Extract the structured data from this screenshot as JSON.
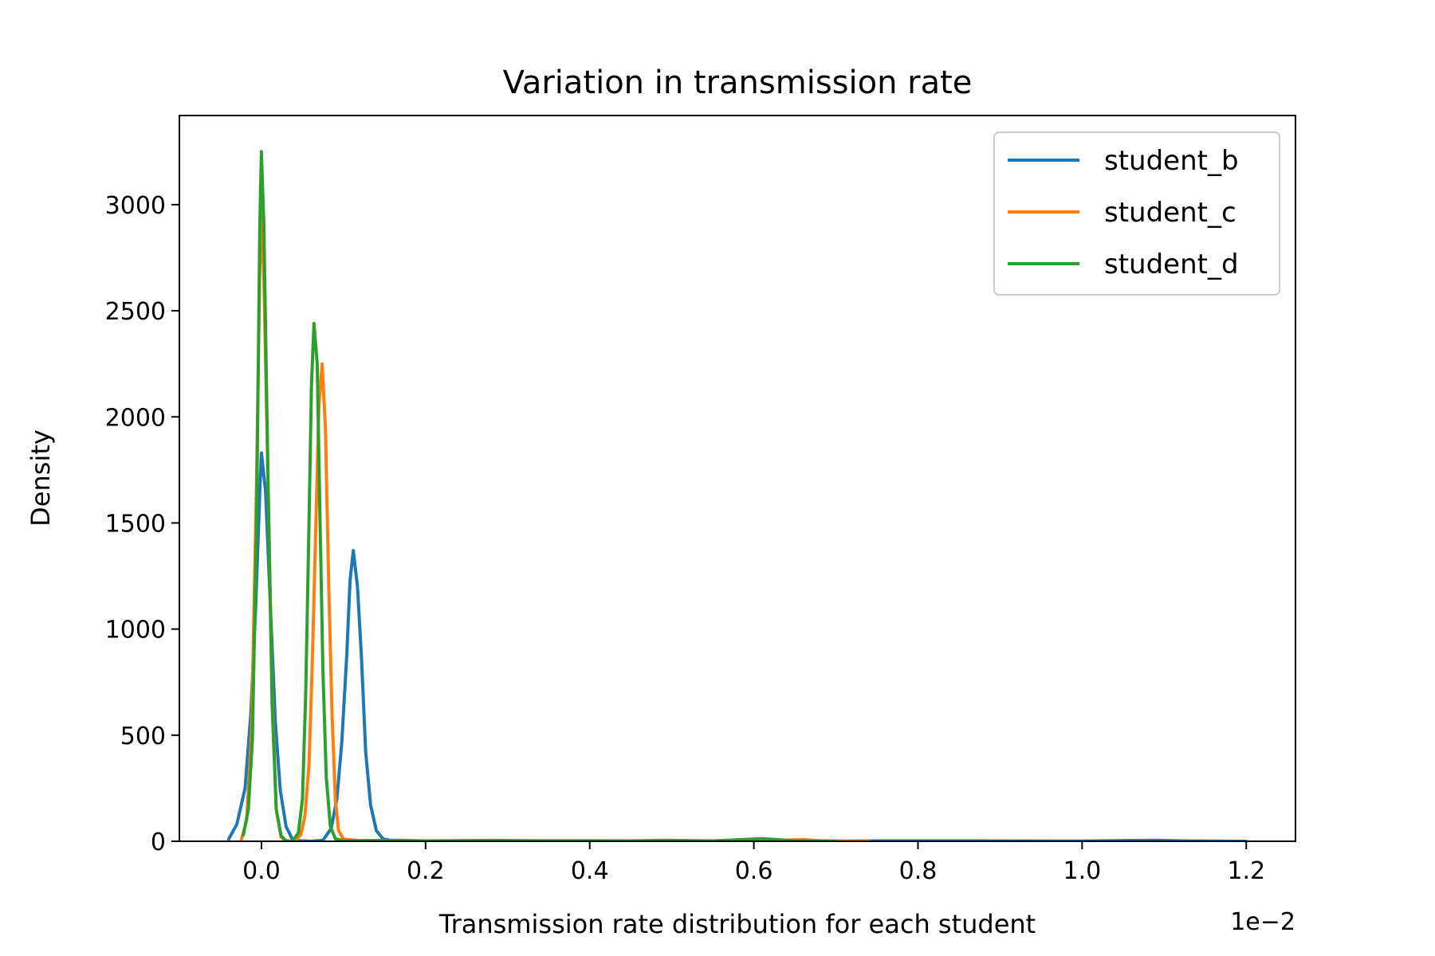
{
  "chart_data": {
    "type": "line",
    "title": "Variation in transmission rate",
    "xlabel": "Transmission rate distribution for each student",
    "ylabel": "Density",
    "x_offset_text": "1e−2",
    "x_scale": 0.01,
    "xlim": [
      -0.1,
      1.26
    ],
    "ylim": [
      0,
      3420
    ],
    "xticks": [
      0.0,
      0.2,
      0.4,
      0.6,
      0.8,
      1.0,
      1.2
    ],
    "xtick_labels": [
      "0.0",
      "0.2",
      "0.4",
      "0.6",
      "0.8",
      "1.0",
      "1.2"
    ],
    "yticks": [
      0,
      500,
      1000,
      1500,
      2000,
      2500,
      3000
    ],
    "ytick_labels": [
      "0",
      "500",
      "1000",
      "1500",
      "2000",
      "2500",
      "3000"
    ],
    "grid": false,
    "legend_position": "top-right",
    "series": [
      {
        "name": "student_b",
        "color": "#1f77b4",
        "points": [
          [
            -0.04,
            10
          ],
          [
            -0.03,
            80
          ],
          [
            -0.02,
            250
          ],
          [
            -0.013,
            600
          ],
          [
            -0.007,
            1100
          ],
          [
            -0.002,
            1650
          ],
          [
            0.0,
            1830
          ],
          [
            0.005,
            1650
          ],
          [
            0.011,
            1100
          ],
          [
            0.017,
            560
          ],
          [
            0.023,
            240
          ],
          [
            0.03,
            70
          ],
          [
            0.037,
            15
          ],
          [
            0.045,
            3
          ],
          [
            0.06,
            0
          ],
          [
            0.075,
            5
          ],
          [
            0.085,
            60
          ],
          [
            0.092,
            200
          ],
          [
            0.098,
            470
          ],
          [
            0.104,
            880
          ],
          [
            0.108,
            1230
          ],
          [
            0.112,
            1370
          ],
          [
            0.117,
            1200
          ],
          [
            0.122,
            860
          ],
          [
            0.127,
            420
          ],
          [
            0.133,
            170
          ],
          [
            0.14,
            50
          ],
          [
            0.148,
            12
          ],
          [
            0.16,
            2
          ],
          [
            0.3,
            0
          ],
          [
            0.6,
            2
          ],
          [
            0.87,
            2
          ],
          [
            1.0,
            1
          ],
          [
            1.09,
            5
          ],
          [
            1.12,
            2
          ],
          [
            1.2,
            0
          ]
        ]
      },
      {
        "name": "student_c",
        "color": "#ff7f0e",
        "points": [
          [
            -0.025,
            0
          ],
          [
            -0.018,
            100
          ],
          [
            -0.012,
            520
          ],
          [
            -0.006,
            1700
          ],
          [
            -0.002,
            2700
          ],
          [
            0.0,
            2950
          ],
          [
            0.003,
            2650
          ],
          [
            0.008,
            1700
          ],
          [
            0.013,
            700
          ],
          [
            0.018,
            150
          ],
          [
            0.024,
            20
          ],
          [
            0.03,
            2
          ],
          [
            0.04,
            0
          ],
          [
            0.048,
            30
          ],
          [
            0.053,
            120
          ],
          [
            0.058,
            360
          ],
          [
            0.062,
            850
          ],
          [
            0.066,
            1450
          ],
          [
            0.07,
            2050
          ],
          [
            0.074,
            2250
          ],
          [
            0.078,
            1950
          ],
          [
            0.082,
            1200
          ],
          [
            0.086,
            600
          ],
          [
            0.09,
            200
          ],
          [
            0.094,
            50
          ],
          [
            0.1,
            10
          ],
          [
            0.12,
            2
          ],
          [
            0.2,
            0
          ],
          [
            0.35,
            2
          ],
          [
            0.5,
            1
          ],
          [
            0.62,
            3
          ],
          [
            0.66,
            8
          ],
          [
            0.68,
            3
          ],
          [
            0.74,
            0
          ]
        ]
      },
      {
        "name": "student_d",
        "color": "#2ca02c",
        "points": [
          [
            -0.022,
            30
          ],
          [
            -0.016,
            150
          ],
          [
            -0.011,
            480
          ],
          [
            -0.006,
            1500
          ],
          [
            -0.002,
            2900
          ],
          [
            0.0,
            3250
          ],
          [
            0.003,
            2900
          ],
          [
            0.008,
            1700
          ],
          [
            0.013,
            650
          ],
          [
            0.018,
            150
          ],
          [
            0.024,
            25
          ],
          [
            0.03,
            3
          ],
          [
            0.038,
            0
          ],
          [
            0.045,
            40
          ],
          [
            0.05,
            200
          ],
          [
            0.054,
            700
          ],
          [
            0.058,
            1500
          ],
          [
            0.061,
            2150
          ],
          [
            0.064,
            2440
          ],
          [
            0.068,
            2250
          ],
          [
            0.071,
            1600
          ],
          [
            0.075,
            800
          ],
          [
            0.079,
            300
          ],
          [
            0.084,
            70
          ],
          [
            0.09,
            12
          ],
          [
            0.1,
            3
          ],
          [
            0.17,
            5
          ],
          [
            0.2,
            2
          ],
          [
            0.28,
            4
          ],
          [
            0.33,
            3
          ],
          [
            0.45,
            2
          ],
          [
            0.49,
            5
          ],
          [
            0.55,
            2
          ],
          [
            0.61,
            12
          ],
          [
            0.65,
            3
          ],
          [
            0.7,
            0
          ]
        ]
      }
    ]
  }
}
